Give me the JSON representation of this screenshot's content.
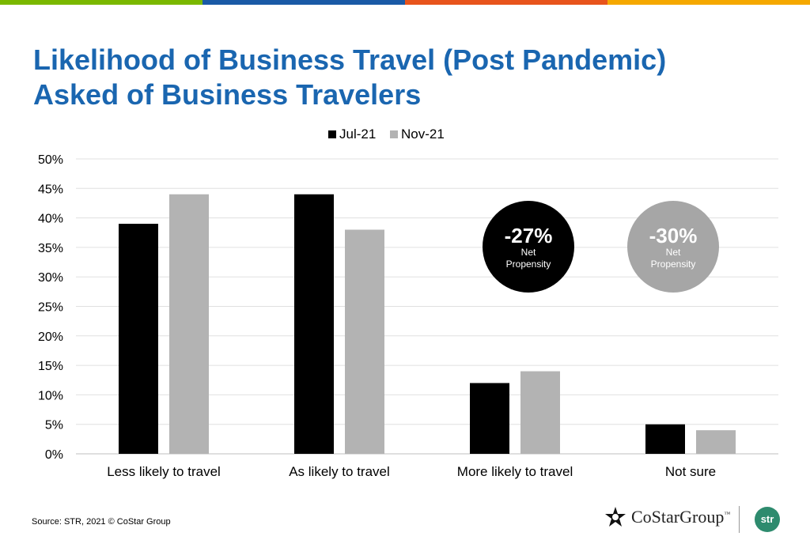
{
  "topbar_colors": [
    "#7ab800",
    "#1a5aa6",
    "#e8541c",
    "#f5a800"
  ],
  "title": {
    "line1": "Likelihood of Business Travel (Post Pandemic)",
    "line2": "Asked of Business Travelers"
  },
  "badges": [
    {
      "value": "-27%",
      "line1": "Net",
      "line2": "Propensity",
      "color": "#000000"
    },
    {
      "value": "-30%",
      "line1": "Net",
      "line2": "Propensity",
      "color": "#a6a6a6"
    }
  ],
  "footer": {
    "source": "Source: STR, 2021 © CoStar Group",
    "brand": "CoStarGroup",
    "brand_mark": "™",
    "str_logo": "str"
  },
  "chart_data": {
    "type": "bar",
    "categories": [
      "Less likely to travel",
      "As likely to travel",
      "More likely to travel",
      "Not sure"
    ],
    "series": [
      {
        "name": "Jul-21",
        "values": [
          39,
          44,
          12,
          5
        ],
        "color": "#000000"
      },
      {
        "name": "Nov-21",
        "values": [
          44,
          38,
          14,
          4
        ],
        "color": "#b3b3b3"
      }
    ],
    "ylim": [
      0,
      50
    ],
    "yticks": [
      0,
      5,
      10,
      15,
      20,
      25,
      30,
      35,
      40,
      45,
      50
    ],
    "ytick_suffix": "%",
    "grid": true,
    "legend": "top-center"
  }
}
